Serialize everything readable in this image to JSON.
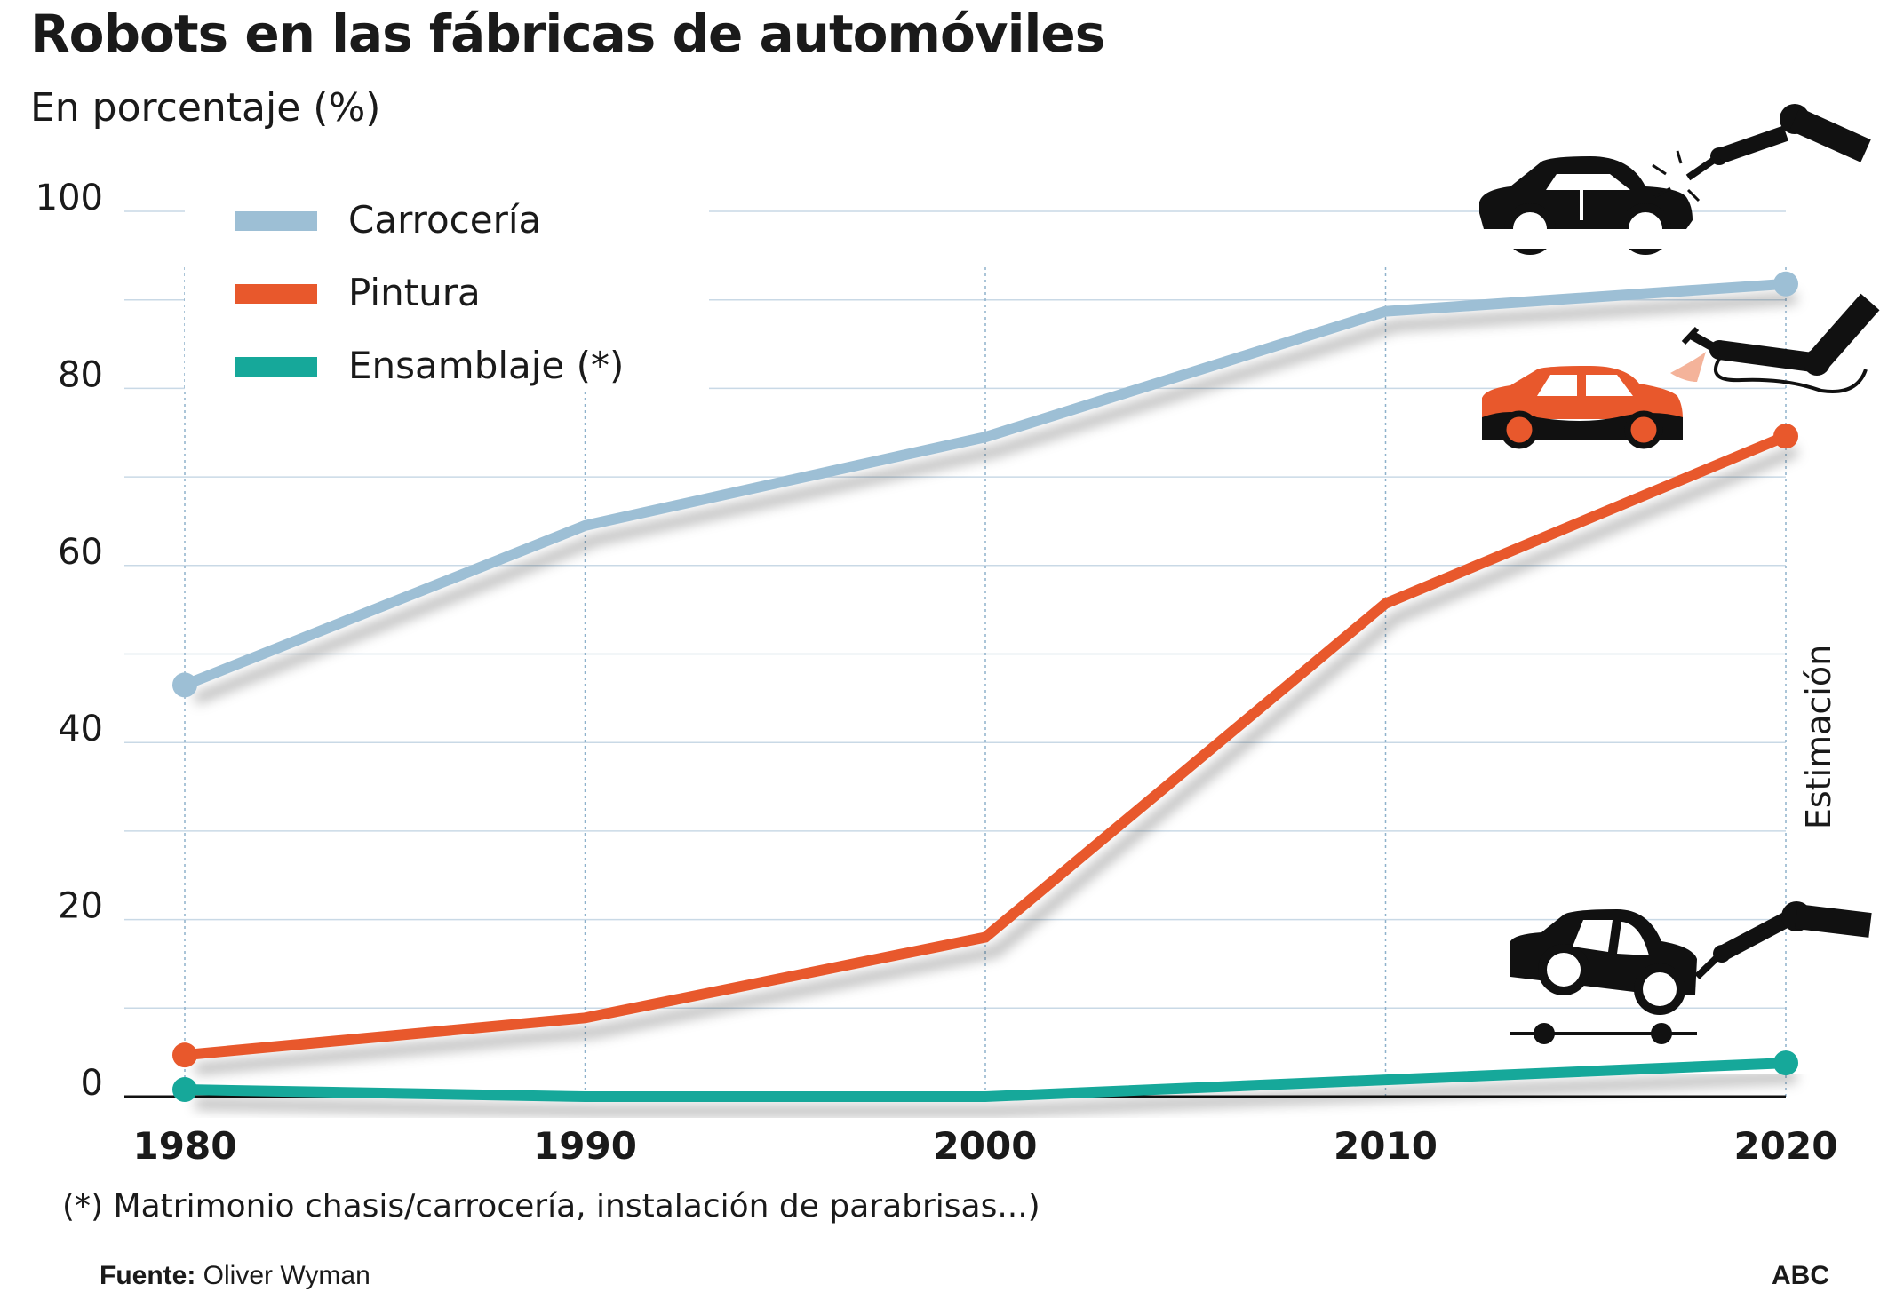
{
  "title": "Robots en las fábricas de automóviles",
  "subtitle": "En porcentaje (%)",
  "footnote": "(*) Matrimonio chasis/carrocería, instalación de parabrisas...)",
  "source_label": "Fuente:",
  "source_value": "Oliver Wyman",
  "brand": "ABC",
  "estimate_label": "Estimación",
  "icons": [
    "car-welding-robot-icon",
    "car-painting-robot-icon",
    "car-assembly-robot-icon"
  ],
  "chart_data": {
    "type": "line",
    "title": "Robots en las fábricas de automóviles",
    "subtitle": "En porcentaje (%)",
    "x": [
      1980,
      1990,
      2000,
      2010,
      2020
    ],
    "x_tick_labels": [
      "1980",
      "1990",
      "2000",
      "2010",
      "2020"
    ],
    "ylim": [
      0,
      100
    ],
    "y_ticks": [
      0,
      20,
      40,
      60,
      80,
      100
    ],
    "y_tick_labels": [
      "0",
      "20",
      "40",
      "60",
      "80",
      "100"
    ],
    "grid": true,
    "legend_position": "top-left",
    "series": [
      {
        "name": "Carrocería",
        "color": "#9dbfd5",
        "values": [
          46.5,
          64.5,
          74.5,
          88.7,
          91.8
        ]
      },
      {
        "name": "Pintura",
        "color": "#e8582c",
        "values": [
          4.7,
          8.9,
          18.0,
          55.7,
          74.6
        ]
      },
      {
        "name": "Ensamblaje (*)",
        "color": "#16a89a",
        "values": [
          0.8,
          0.0,
          0.0,
          1.9,
          3.8
        ]
      }
    ]
  }
}
